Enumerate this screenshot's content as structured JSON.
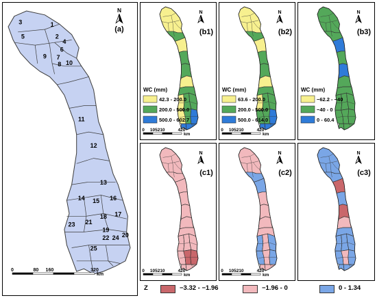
{
  "colors": {
    "basin_fill": "#c6d2f2",
    "wc_low": "#f7f08f",
    "wc_mid": "#54a85a",
    "wc_high": "#2f7bd8",
    "z_neg_strong": "#c9676b",
    "z_neg_weak": "#f2b9bd",
    "z_pos": "#7aa6e6"
  },
  "panel_a": {
    "label": "(a)",
    "north": "N",
    "subbasins": [
      "1",
      "2",
      "3",
      "4",
      "5",
      "6",
      "7",
      "8",
      "9",
      "10",
      "11",
      "12",
      "13",
      "14",
      "15",
      "16",
      "17",
      "18",
      "19",
      "20",
      "21",
      "22",
      "23",
      "24",
      "25"
    ],
    "scale_ticks": [
      "0",
      "80",
      "160",
      "320"
    ],
    "scale_unit": "km"
  },
  "wc_panels": [
    {
      "label": "(b1)",
      "legend_title": "WC (mm)",
      "legend": [
        "42.3 - 200.0",
        "200.0 - 500.0",
        "500.0 - 602.7"
      ],
      "scale_ticks": [
        "0",
        "105210",
        "420"
      ],
      "scale_unit": "km"
    },
    {
      "label": "(b2)",
      "legend_title": "WC (mm)",
      "legend": [
        "63.6 - 200.0",
        "200.0 - 500.0",
        "500.0 - 614.0"
      ],
      "scale_ticks": [
        "0",
        "105210",
        "420"
      ],
      "scale_unit": "km"
    },
    {
      "label": "(b3)",
      "legend_title": "WC (mm)",
      "legend": [
        "−62.2 - −40",
        "−40 - 0",
        "0 - 60.4"
      ],
      "scale_ticks": [],
      "scale_unit": ""
    }
  ],
  "z_panels": [
    {
      "label": "(c1)",
      "scale_ticks": [
        "0",
        "105210",
        "420"
      ],
      "scale_unit": "km"
    },
    {
      "label": "(c2)",
      "scale_ticks": [
        "0",
        "105210",
        "420"
      ],
      "scale_unit": "km"
    },
    {
      "label": "(c3)",
      "scale_ticks": [],
      "scale_unit": ""
    }
  ],
  "z_legend": {
    "title": "Z",
    "items": [
      "−3.32 - −1.96",
      "−1.96 - 0",
      "0 - 1.34"
    ]
  },
  "north_label": "N"
}
